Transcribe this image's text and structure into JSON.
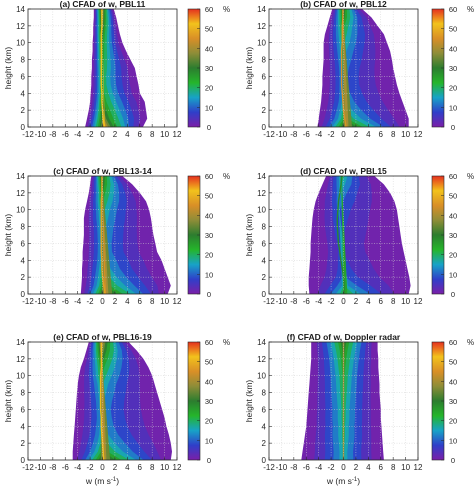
{
  "figure": {
    "colorbar_unit": "%",
    "colorbar_ticks": [
      0,
      10,
      20,
      30,
      40,
      50,
      60
    ],
    "colorbar_colors": [
      "#7b1fa8",
      "#2f3fc9",
      "#17a3c7",
      "#25b52b",
      "#2c7d2f",
      "#8e8d38",
      "#d98f27",
      "#f2c21c",
      "#e5301f"
    ]
  },
  "chart_data": [
    {
      "type": "heatmap",
      "title": "(a) CFAD of w, PBL11",
      "xlabel": "",
      "ylabel": "height (km)",
      "xlim": [
        -12,
        12
      ],
      "ylim": [
        0,
        14
      ],
      "x_ticks": [
        -12,
        -10,
        -8,
        -6,
        -4,
        -2,
        0,
        2,
        4,
        6,
        8,
        10,
        12
      ],
      "y_ticks": [
        0,
        2,
        4,
        6,
        8,
        10,
        12,
        14
      ],
      "envelope": {
        "heights": [
          0,
          1,
          2,
          3,
          4,
          5,
          6,
          7,
          8,
          9,
          10,
          11,
          12,
          13,
          14
        ],
        "left": [
          -2.8,
          -2.5,
          -2.2,
          -2.0,
          -1.9,
          -1.8,
          -1.8,
          -1.7,
          -1.7,
          -1.6,
          -1.6,
          -1.5,
          -1.5,
          -1.4,
          -1.4
        ],
        "right": [
          6.5,
          7.2,
          7.0,
          6.8,
          6.0,
          5.8,
          5.5,
          5.2,
          4.5,
          3.8,
          3.2,
          2.8,
          2.5,
          2.2,
          1.8
        ]
      },
      "peak": {
        "heights": [
          0,
          1,
          2,
          3,
          4,
          5,
          6,
          7,
          8,
          9,
          10,
          11,
          12,
          13,
          14
        ],
        "w": [
          0.3,
          0.1,
          0.0,
          -0.1,
          -0.1,
          -0.2,
          -0.2,
          -0.2,
          -0.2,
          -0.2,
          -0.2,
          -0.2,
          -0.1,
          -0.1,
          -0.1
        ],
        "freq": [
          55,
          45,
          40,
          35,
          32,
          30,
          30,
          32,
          34,
          36,
          38,
          42,
          46,
          50,
          54
        ]
      }
    },
    {
      "type": "heatmap",
      "title": "(b) CFAD of w, PBL12",
      "xlabel": "",
      "ylabel": "height (km)",
      "xlim": [
        -12,
        12
      ],
      "ylim": [
        0,
        14
      ],
      "x_ticks": [
        -12,
        -10,
        -8,
        -6,
        -4,
        -2,
        0,
        2,
        4,
        6,
        8,
        10,
        12
      ],
      "y_ticks": [
        0,
        2,
        4,
        6,
        8,
        10,
        12,
        14
      ],
      "envelope": {
        "heights": [
          0,
          1,
          2,
          3,
          4,
          5,
          6,
          7,
          8,
          9,
          10,
          11,
          12,
          13,
          14
        ],
        "left": [
          -4.2,
          -4.0,
          -3.8,
          -3.6,
          -3.5,
          -3.4,
          -3.4,
          -3.3,
          -3.2,
          -3.2,
          -3.2,
          -3.0,
          -2.6,
          -2.2,
          -1.8
        ],
        "right": [
          10.5,
          10.5,
          10.0,
          9.5,
          9.0,
          8.6,
          8.3,
          8.0,
          7.8,
          7.5,
          7.0,
          6.5,
          5.5,
          4.5,
          3.0
        ]
      },
      "peak": {
        "heights": [
          0,
          1,
          2,
          3,
          4,
          5,
          6,
          7,
          8,
          9,
          10,
          11,
          12,
          13,
          14
        ],
        "w": [
          0.4,
          0.2,
          0.0,
          -0.1,
          -0.2,
          -0.3,
          -0.3,
          -0.3,
          -0.3,
          -0.3,
          -0.2,
          -0.2,
          -0.2,
          -0.1,
          -0.1
        ],
        "freq": [
          48,
          30,
          24,
          20,
          18,
          17,
          17,
          18,
          20,
          22,
          25,
          28,
          32,
          38,
          44
        ]
      }
    },
    {
      "type": "heatmap",
      "title": "(c) CFAD of w, PBL13-14",
      "xlabel": "",
      "ylabel": "height (km)",
      "xlim": [
        -12,
        12
      ],
      "ylim": [
        0,
        14
      ],
      "x_ticks": [
        -12,
        -10,
        -8,
        -6,
        -4,
        -2,
        0,
        2,
        4,
        6,
        8,
        10,
        12
      ],
      "y_ticks": [
        0,
        2,
        4,
        6,
        8,
        10,
        12,
        14
      ],
      "envelope": {
        "heights": [
          0,
          1,
          2,
          3,
          4,
          5,
          6,
          7,
          8,
          9,
          10,
          11,
          12,
          13,
          14
        ],
        "left": [
          -3.5,
          -3.4,
          -3.3,
          -3.3,
          -3.2,
          -3.2,
          -3.1,
          -3.0,
          -3.0,
          -3.0,
          -2.8,
          -2.5,
          -2.2,
          -2.0,
          -1.8
        ],
        "right": [
          10.5,
          11.0,
          10.5,
          10.0,
          9.5,
          8.8,
          8.5,
          8.2,
          8.0,
          7.8,
          7.5,
          7.0,
          6.0,
          4.8,
          3.2
        ]
      },
      "peak": {
        "heights": [
          0,
          1,
          2,
          3,
          4,
          5,
          6,
          7,
          8,
          9,
          10,
          11,
          12,
          13,
          14
        ],
        "w": [
          0.4,
          0.2,
          0.0,
          -0.1,
          -0.1,
          -0.2,
          -0.2,
          -0.2,
          -0.2,
          -0.2,
          -0.2,
          -0.2,
          -0.1,
          -0.1,
          -0.1
        ],
        "freq": [
          50,
          34,
          28,
          24,
          22,
          20,
          20,
          21,
          22,
          24,
          26,
          30,
          34,
          40,
          46
        ]
      }
    },
    {
      "type": "heatmap",
      "title": "(d) CFAD of w, PBL15",
      "xlabel": "",
      "ylabel": "height (km)",
      "xlim": [
        -12,
        12
      ],
      "ylim": [
        0,
        14
      ],
      "x_ticks": [
        -12,
        -10,
        -8,
        -6,
        -4,
        -2,
        0,
        2,
        4,
        6,
        8,
        10,
        12
      ],
      "y_ticks": [
        0,
        2,
        4,
        6,
        8,
        10,
        12,
        14
      ],
      "envelope": {
        "heights": [
          0,
          1,
          2,
          3,
          4,
          5,
          6,
          7,
          8,
          9,
          10,
          11,
          12,
          13,
          14
        ],
        "left": [
          -5.5,
          -5.6,
          -5.6,
          -5.5,
          -5.4,
          -5.3,
          -5.3,
          -5.2,
          -5.1,
          -5.0,
          -4.8,
          -4.5,
          -4.0,
          -3.4,
          -2.8
        ],
        "right": [
          10.5,
          10.8,
          10.6,
          10.3,
          10.0,
          9.7,
          9.4,
          9.2,
          9.0,
          8.8,
          8.6,
          8.2,
          7.5,
          6.5,
          5.0
        ]
      },
      "peak": {
        "heights": [
          0,
          1,
          2,
          3,
          4,
          5,
          6,
          7,
          8,
          9,
          10,
          11,
          12,
          13,
          14
        ],
        "w": [
          0.2,
          0.1,
          0.0,
          -0.2,
          -0.4,
          -0.6,
          -0.8,
          -0.9,
          -1.0,
          -1.0,
          -0.9,
          -0.8,
          -0.6,
          -0.4,
          -0.3
        ],
        "freq": [
          30,
          20,
          14,
          12,
          11,
          10,
          10,
          11,
          12,
          13,
          14,
          16,
          18,
          22,
          26
        ]
      }
    },
    {
      "type": "heatmap",
      "title": "(e) CFAD of w, PBL16-19",
      "xlabel": "w (m s",
      "xlabel_sup": "-1",
      "xlabel_end": ")",
      "ylabel": "height (km)",
      "xlim": [
        -12,
        12
      ],
      "ylim": [
        0,
        14
      ],
      "x_ticks": [
        -12,
        -10,
        -8,
        -6,
        -4,
        -2,
        0,
        2,
        4,
        6,
        8,
        10,
        12
      ],
      "y_ticks": [
        0,
        2,
        4,
        6,
        8,
        10,
        12,
        14
      ],
      "envelope": {
        "heights": [
          0,
          1,
          2,
          3,
          4,
          5,
          6,
          7,
          8,
          9,
          10,
          11,
          12,
          13,
          14
        ],
        "left": [
          -4.8,
          -4.8,
          -4.7,
          -4.6,
          -4.5,
          -4.4,
          -4.3,
          -4.2,
          -4.1,
          -4.0,
          -3.8,
          -3.5,
          -3.0,
          -2.6,
          -2.2
        ],
        "right": [
          11.0,
          11.2,
          11.0,
          10.7,
          10.3,
          10.0,
          9.6,
          9.2,
          8.8,
          8.4,
          8.0,
          7.4,
          6.6,
          5.5,
          4.2
        ]
      },
      "peak": {
        "heights": [
          0,
          1,
          2,
          3,
          4,
          5,
          6,
          7,
          8,
          9,
          10,
          11,
          12,
          13,
          14
        ],
        "w": [
          0.2,
          0.1,
          0.0,
          -0.1,
          -0.2,
          -0.2,
          -0.3,
          -0.3,
          -0.3,
          -0.3,
          -0.3,
          -0.2,
          -0.2,
          -0.2,
          -0.2
        ],
        "freq": [
          48,
          32,
          26,
          22,
          20,
          19,
          19,
          20,
          22,
          24,
          28,
          32,
          38,
          46,
          54
        ]
      }
    },
    {
      "type": "heatmap",
      "title": "(f) CFAD of w, Doppler radar",
      "xlabel": "w (m s",
      "xlabel_sup": "-1",
      "xlabel_end": ")",
      "ylabel": "height (km)",
      "xlim": [
        -12,
        12
      ],
      "ylim": [
        0,
        14
      ],
      "x_ticks": [
        -12,
        -10,
        -8,
        -6,
        -4,
        -2,
        0,
        2,
        4,
        6,
        8,
        10,
        12
      ],
      "y_ticks": [
        0,
        2,
        4,
        6,
        8,
        10,
        12,
        14
      ],
      "envelope": {
        "heights": [
          0,
          1,
          2,
          3,
          4,
          5,
          6,
          7,
          8,
          9,
          10,
          11,
          12,
          13,
          14
        ],
        "left": [
          -6.8,
          -6.6,
          -6.4,
          -6.2,
          -6.0,
          -5.9,
          -5.8,
          -5.7,
          -5.6,
          -5.5,
          -5.4,
          -5.3,
          -5.2,
          -5.2,
          -5.2
        ],
        "right": [
          6.5,
          6.4,
          6.3,
          6.2,
          6.1,
          6.0,
          6.0,
          5.9,
          5.8,
          5.8,
          5.7,
          5.6,
          5.6,
          5.5,
          5.5
        ]
      },
      "peak": {
        "heights": [
          0,
          1,
          2,
          3,
          4,
          5,
          6,
          7,
          8,
          9,
          10,
          11,
          12,
          13,
          14
        ],
        "w": [
          0.0,
          0.0,
          0.0,
          0.0,
          0.0,
          0.0,
          0.0,
          0.0,
          0.0,
          0.0,
          0.0,
          0.0,
          0.0,
          0.0,
          0.0
        ],
        "freq": [
          22,
          22,
          23,
          24,
          24,
          25,
          25,
          26,
          27,
          28,
          29,
          31,
          33,
          36,
          40
        ]
      }
    }
  ]
}
